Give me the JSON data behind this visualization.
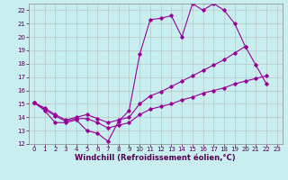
{
  "xlabel": "Windchill (Refroidissement éolien,°C)",
  "background_color": "#c8eef0",
  "grid_color": "#b0b0b0",
  "line_color": "#990099",
  "xlim": [
    -0.5,
    23.5
  ],
  "ylim": [
    12,
    22.5
  ],
  "xticks": [
    0,
    1,
    2,
    3,
    4,
    5,
    6,
    7,
    8,
    9,
    10,
    11,
    12,
    13,
    14,
    15,
    16,
    17,
    18,
    19,
    20,
    21,
    22,
    23
  ],
  "yticks": [
    12,
    13,
    14,
    15,
    16,
    17,
    18,
    19,
    20,
    21,
    22
  ],
  "line1_x": [
    0,
    1,
    2,
    3,
    4,
    5,
    6,
    7,
    8,
    9,
    10,
    11,
    12,
    13,
    14,
    15,
    16,
    17,
    18,
    19,
    20,
    21,
    22
  ],
  "line1_y": [
    15.1,
    14.5,
    13.6,
    13.6,
    13.8,
    13.0,
    12.8,
    12.2,
    13.7,
    14.5,
    18.7,
    21.3,
    21.4,
    21.6,
    20.0,
    22.5,
    22.0,
    22.5,
    22.0,
    21.0,
    19.3,
    17.9,
    16.5
  ],
  "line2_x": [
    0,
    1,
    2,
    3,
    4,
    5,
    6,
    7,
    8,
    9,
    10,
    11,
    12,
    13,
    14,
    15,
    16,
    17,
    18,
    19,
    20,
    21,
    22
  ],
  "line2_y": [
    15.1,
    14.6,
    14.1,
    13.7,
    13.9,
    13.9,
    13.6,
    13.2,
    13.4,
    13.6,
    14.2,
    14.6,
    14.8,
    15.0,
    15.3,
    15.5,
    15.8,
    16.0,
    16.2,
    16.5,
    16.7,
    16.9,
    17.1
  ],
  "line3_x": [
    0,
    1,
    2,
    3,
    4,
    5,
    6,
    7,
    8,
    9,
    10,
    11,
    12,
    13,
    14,
    15,
    16,
    17,
    18,
    19,
    20
  ],
  "line3_y": [
    15.1,
    14.7,
    14.2,
    13.8,
    14.0,
    14.2,
    13.9,
    13.6,
    13.8,
    14.0,
    15.0,
    15.6,
    15.9,
    16.3,
    16.7,
    17.1,
    17.5,
    17.9,
    18.3,
    18.8,
    19.3
  ],
  "figsize": [
    3.2,
    2.0
  ],
  "dpi": 100,
  "tick_fontsize": 5.0,
  "xlabel_fontsize": 6.0
}
